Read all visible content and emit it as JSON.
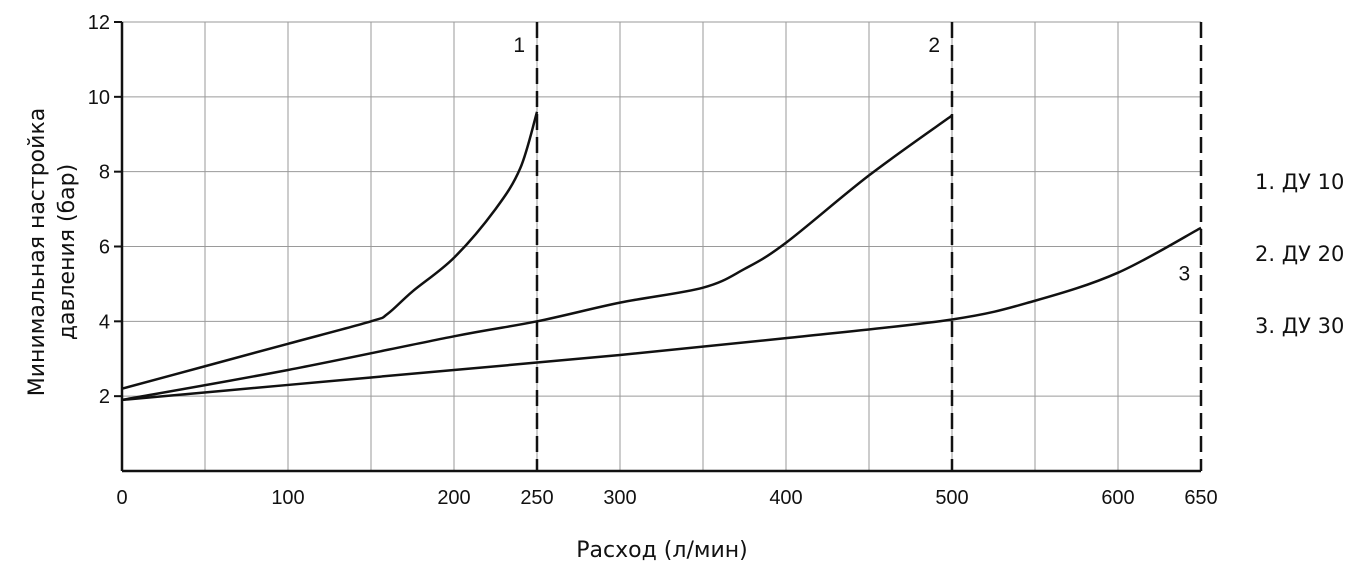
{
  "chart_data": {
    "type": "line",
    "title": "",
    "xlabel": "Расход (л/мин)",
    "ylabel_lines": [
      "Минимальная настройка",
      "давления (бар)"
    ],
    "xlim": [
      0,
      650
    ],
    "ylim": [
      0,
      12
    ],
    "x_ticks": [
      0,
      100,
      200,
      250,
      300,
      400,
      500,
      600,
      650
    ],
    "x_tick_labels": [
      "0",
      "100",
      "200",
      "250",
      "300",
      "400",
      "500",
      "600",
      "650"
    ],
    "y_ticks": [
      2,
      4,
      6,
      8,
      10,
      12
    ],
    "y_tick_labels": [
      "2",
      "4",
      "6",
      "8",
      "10",
      "12"
    ],
    "grid": true,
    "series": [
      {
        "label": "1",
        "x": [
          0,
          50,
          100,
          150,
          160,
          175,
          200,
          225,
          240,
          250
        ],
        "y": [
          2.2,
          2.8,
          3.4,
          4.0,
          4.2,
          4.8,
          5.7,
          7.0,
          8.1,
          9.6
        ]
      },
      {
        "label": "2",
        "x": [
          0,
          100,
          200,
          250,
          300,
          350,
          375,
          400,
          450,
          500
        ],
        "y": [
          1.9,
          2.7,
          3.6,
          4.0,
          4.5,
          4.9,
          5.4,
          6.1,
          7.9,
          9.5
        ]
      },
      {
        "label": "3",
        "x": [
          0,
          100,
          200,
          300,
          400,
          500,
          550,
          600,
          650
        ],
        "y": [
          1.9,
          2.3,
          2.7,
          3.1,
          3.55,
          4.05,
          4.55,
          5.3,
          6.5
        ]
      }
    ],
    "vlines": [
      {
        "x": 250,
        "label": "1"
      },
      {
        "x": 500,
        "label": "2"
      },
      {
        "x": 650,
        "label": ""
      }
    ],
    "curve_labels": [
      {
        "text": "3",
        "x": 640,
        "y": 5.2
      }
    ],
    "legend": [
      "1. ДУ 10",
      "2. ДУ 20",
      "3. ДУ 30"
    ],
    "legend_position": "right"
  }
}
